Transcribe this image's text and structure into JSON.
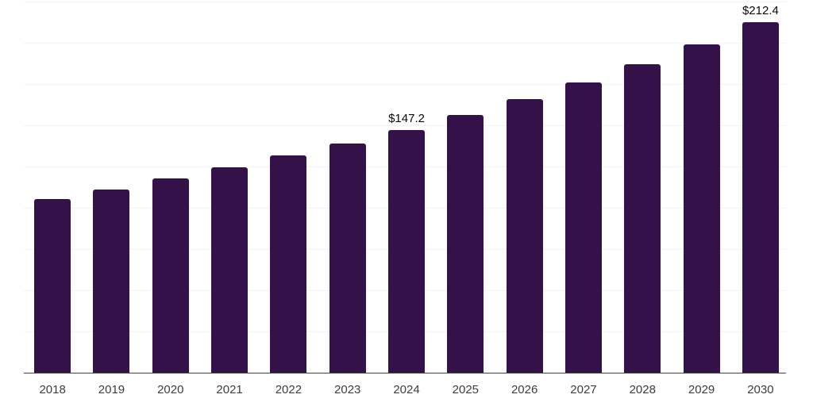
{
  "chart_data": {
    "type": "bar",
    "title": "",
    "xlabel": "",
    "ylabel": "",
    "categories": [
      "2018",
      "2019",
      "2020",
      "2021",
      "2022",
      "2023",
      "2024",
      "2025",
      "2026",
      "2027",
      "2028",
      "2029",
      "2030"
    ],
    "values": [
      105.4,
      111.3,
      117.6,
      124.4,
      131.8,
      139.2,
      147.2,
      156.1,
      165.7,
      176.0,
      187.1,
      199.2,
      212.4
    ],
    "value_labels": [
      {
        "category": "2024",
        "text": "$147.2"
      },
      {
        "category": "2030",
        "text": "$212.4"
      }
    ],
    "ylim": [
      0,
      226
    ],
    "gridline_step": 25,
    "grid": true,
    "legend": false
  },
  "colors": {
    "background": "#ffffff",
    "bar": "#341149",
    "gridline": "#f3f3f3",
    "axis": "#444444",
    "tick_label": "#3d3d3d",
    "value_label": "#0a0a0a"
  }
}
